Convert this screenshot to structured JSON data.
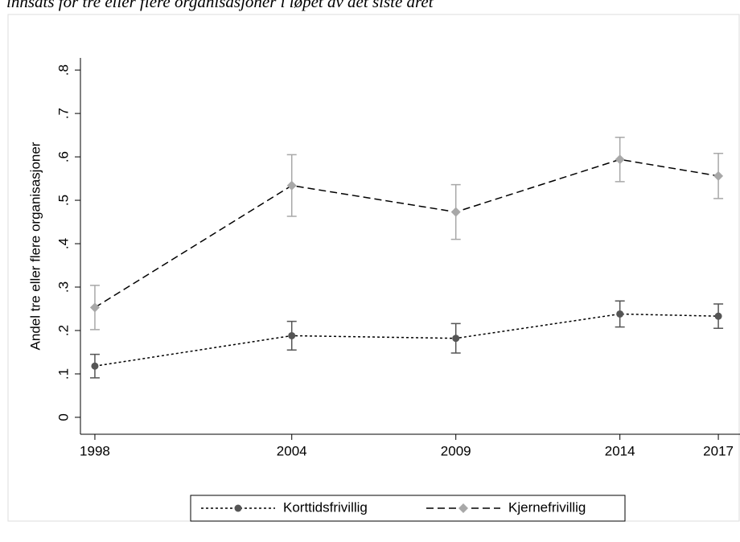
{
  "chart_data": {
    "type": "line",
    "title": "innsats for tre eller flere organisasjoner i løpet av det siste året",
    "y_label": "Andel tre eller flere organisasjoner",
    "x": [
      1998,
      2004,
      2009,
      2014,
      2017
    ],
    "xlim": [
      1997.56,
      2017.66
    ],
    "xticks": [
      1998,
      2004,
      2009,
      2014,
      2017
    ],
    "ylim": [
      -0.039,
      0.828
    ],
    "yticks": [
      {
        "value": 0,
        "label": "0"
      },
      {
        "value": 0.1,
        "label": ".1"
      },
      {
        "value": 0.2,
        "label": ".2"
      },
      {
        "value": 0.3,
        "label": ".3"
      },
      {
        "value": 0.4,
        "label": ".4"
      },
      {
        "value": 0.5,
        "label": ".5"
      },
      {
        "value": 0.6,
        "label": ".6"
      },
      {
        "value": 0.7,
        "label": ".7"
      },
      {
        "value": 0.8,
        "label": ".8"
      }
    ],
    "grid": false,
    "legend": "bottom",
    "series": [
      {
        "name": "Korttidsfrivillig",
        "color": "#555555",
        "line_color": "#000000",
        "dash": "3 3",
        "marker": "circle",
        "values": [
          0.118,
          0.188,
          0.182,
          0.238,
          0.233
        ],
        "errors": [
          0.027,
          0.033,
          0.034,
          0.03,
          0.028
        ]
      },
      {
        "name": "Kjernefrivillig",
        "color": "#a8a8a8",
        "line_color": "#000000",
        "dash": "9 5",
        "marker": "diamond",
        "values": [
          0.253,
          0.534,
          0.473,
          0.594,
          0.556
        ],
        "errors": [
          0.051,
          0.071,
          0.063,
          0.051,
          0.052
        ]
      }
    ]
  }
}
